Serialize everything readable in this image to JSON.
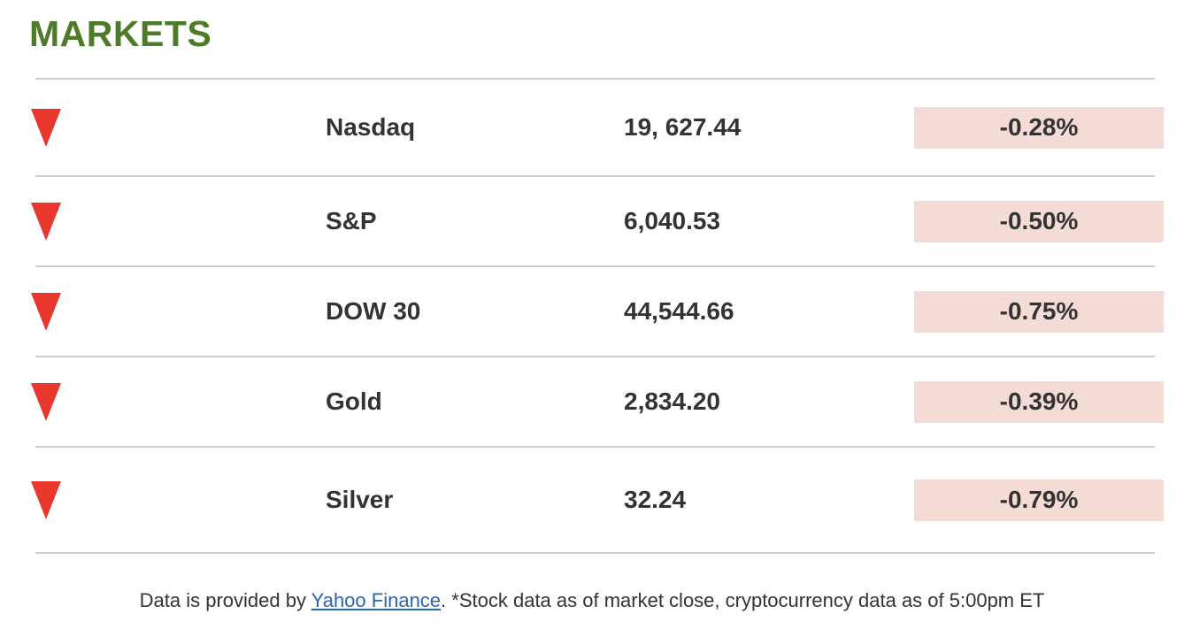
{
  "header": {
    "title": "MARKETS"
  },
  "rows": [
    {
      "name": "Nasdaq",
      "value": "19, 627.44",
      "change": "-0.28%",
      "direction": "down"
    },
    {
      "name": "S&P",
      "value": "6,040.53",
      "change": "-0.50%",
      "direction": "down"
    },
    {
      "name": "DOW 30",
      "value": "44,544.66",
      "change": "-0.75%",
      "direction": "down"
    },
    {
      "name": "Gold",
      "value": "2,834.20",
      "change": "-0.39%",
      "direction": "down"
    },
    {
      "name": "Silver",
      "value": "32.24",
      "change": "-0.79%",
      "direction": "down"
    }
  ],
  "footer": {
    "prefix": "Data is provided by ",
    "link_label": "Yahoo Finance",
    "suffix": ". *Stock data as of market close, cryptocurrency data as of 5:00pm ET"
  },
  "icons": {
    "row_indicator": "down-triangle-icon"
  },
  "colors": {
    "heading_green": "#4e7b28",
    "triangle_red": "#e8382d",
    "badge_bg": "#f5dbd6",
    "text_dark": "#333333",
    "divider_gray": "#cccccc",
    "link_blue": "#2b66b1"
  }
}
